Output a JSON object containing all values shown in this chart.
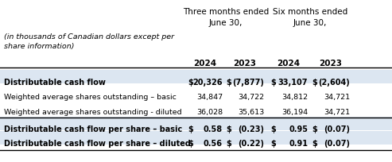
{
  "header1_left": "Three months ended",
  "header1_right": "Six months ended",
  "header2": "June 30,",
  "subheader_italic": "(in thousands of Canadian dollars except per\nshare information)",
  "years": [
    "2024",
    "2023",
    "2024",
    "2023"
  ],
  "rows": [
    {
      "label": "Distributable cash flow",
      "signs": [
        "$",
        "$",
        "$",
        "$"
      ],
      "values": [
        "20,326",
        "(7,877)",
        "33,107",
        "(2,604)"
      ],
      "bold": true,
      "shaded": true
    },
    {
      "label": "Weighted average shares outstanding – basic",
      "signs": [
        "",
        "",
        "",
        ""
      ],
      "values": [
        "34,847",
        "34,722",
        "34,812",
        "34,721"
      ],
      "bold": false,
      "shaded": false
    },
    {
      "label": "Weighted average shares outstanding - diluted",
      "signs": [
        "",
        "",
        "",
        ""
      ],
      "values": [
        "36,028",
        "35,613",
        "36,194",
        "34,721"
      ],
      "bold": false,
      "shaded": false
    },
    {
      "label": "Distributable cash flow per share – basic",
      "signs": [
        "$",
        "$",
        "$",
        "$"
      ],
      "values": [
        "0.58",
        "(0.23)",
        "0.95",
        "(0.07)"
      ],
      "bold": true,
      "shaded": true
    },
    {
      "label": "Distributable cash flow per share – diluted",
      "signs": [
        "$",
        "$",
        "$",
        "$"
      ],
      "values": [
        "0.56",
        "(0.22)",
        "0.91",
        "(0.07)"
      ],
      "bold": true,
      "shaded": true
    }
  ],
  "shaded_bg": "#dce6f1",
  "white_bg": "#ffffff",
  "font_size": 6.8,
  "header_font_size": 7.5,
  "bold_font_size": 7.0
}
